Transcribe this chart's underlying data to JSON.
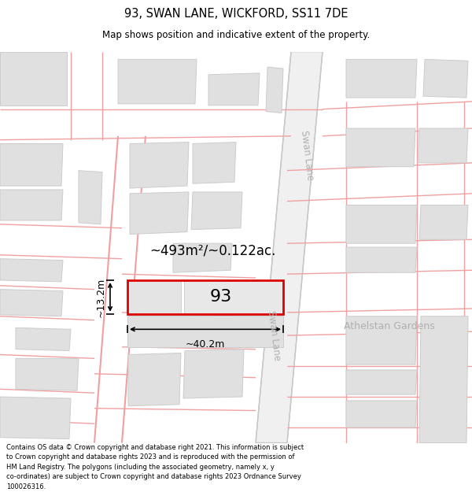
{
  "title": "93, SWAN LANE, WICKFORD, SS11 7DE",
  "subtitle": "Map shows position and indicative extent of the property.",
  "footer": "Contains OS data © Crown copyright and database right 2021. This information is subject\nto Crown copyright and database rights 2023 and is reproduced with the permission of\nHM Land Registry. The polygons (including the associated geometry, namely x, y\nco-ordinates) are subject to Crown copyright and database rights 2023 Ordnance Survey\n100026316.",
  "bg_color": "#ffffff",
  "map_bg": "#ffffff",
  "road_fill": "#f5f5f5",
  "road_line": "#f0a0a0",
  "swan_lane_fill": "#f0f0f0",
  "swan_lane_line": "#c8c8c8",
  "building_color": "#e0e0e0",
  "building_edge": "#cccccc",
  "highlight_color": "#dd0000",
  "highlight_fill": "#e8e8e8",
  "plot_line": "#f0a0a0",
  "road_label_color": "#b0b0b0",
  "area_label": "~493m²/~0.122ac.",
  "property_number": "93",
  "dim_width": "~40.2m",
  "dim_height": "~13.2m",
  "swan_lane_label1": "Swan Lane",
  "swan_lane_label2": "Swan Lane",
  "athelstan_label": "Athelstan Gardens"
}
